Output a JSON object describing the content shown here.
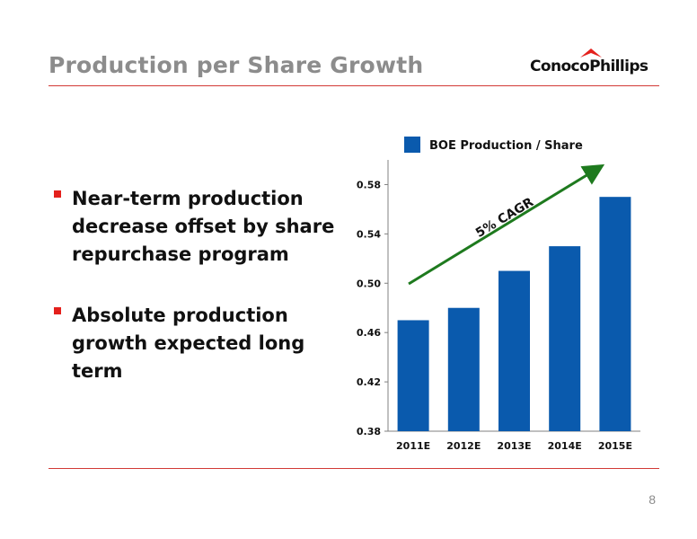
{
  "slide": {
    "title": "Production per Share Growth",
    "page_number": "8",
    "logo_text": "ConocoPhillips",
    "accent_color": "#d23a36",
    "bullet_color": "#e4201c"
  },
  "bullets": [
    "Near-term production decrease offset by share repurchase program",
    "Absolute production growth expected long term"
  ],
  "chart_data": {
    "type": "bar",
    "categories": [
      "2011E",
      "2012E",
      "2013E",
      "2014E",
      "2015E"
    ],
    "series": [
      {
        "name": "BOE Production / Share",
        "values": [
          0.47,
          0.48,
          0.51,
          0.53,
          0.57
        ],
        "color": "#0a5aad"
      }
    ],
    "ylim": [
      0.38,
      0.6
    ],
    "yticks": [
      "0.38",
      "0.42",
      "0.46",
      "0.50",
      "0.54",
      "0.58"
    ],
    "legend_position": "top",
    "grid": false,
    "annotation": {
      "text": "5% CAGR",
      "color": "#1e7a1e"
    }
  }
}
